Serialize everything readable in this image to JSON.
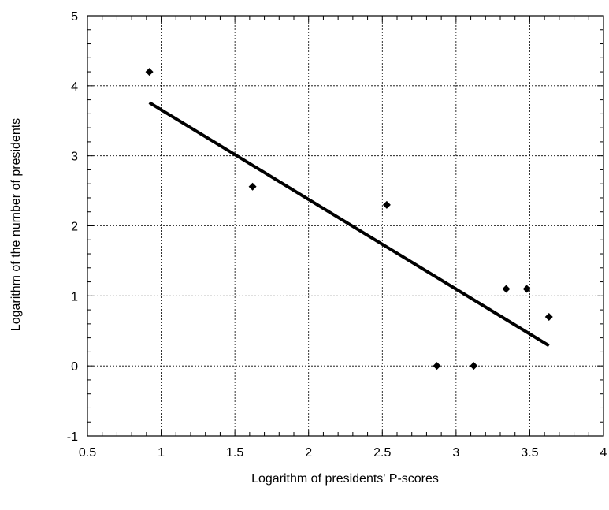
{
  "chart_data": {
    "type": "scatter",
    "xlabel": "Logarithm of presidents' P-scores",
    "ylabel": "Logarithm of the number of presidents",
    "xlim": [
      0.5,
      4
    ],
    "ylim": [
      -1,
      5
    ],
    "xticks": [
      0.5,
      1,
      1.5,
      2,
      2.5,
      3,
      3.5,
      4
    ],
    "xtick_labels": [
      "0.5",
      "1",
      "1.5",
      "2",
      "2.5",
      "3",
      "3.5",
      "4"
    ],
    "yticks": [
      -1,
      0,
      1,
      2,
      3,
      4,
      5
    ],
    "ytick_labels": [
      "-1",
      "0",
      "1",
      "2",
      "3",
      "4",
      "5"
    ],
    "x_minor_step": 0.1,
    "y_minor_step": 0.2,
    "grid": true,
    "grid_style": "dotted",
    "marker": "diamond",
    "points": [
      {
        "x": 0.92,
        "y": 4.2
      },
      {
        "x": 1.62,
        "y": 2.56
      },
      {
        "x": 2.53,
        "y": 2.3
      },
      {
        "x": 2.87,
        "y": 0.0
      },
      {
        "x": 3.12,
        "y": 0.0
      },
      {
        "x": 3.34,
        "y": 1.1
      },
      {
        "x": 3.48,
        "y": 1.1
      },
      {
        "x": 3.63,
        "y": 0.7
      }
    ],
    "trendline": {
      "type": "linear",
      "x": [
        0.92,
        3.63
      ],
      "y": [
        3.76,
        0.29
      ]
    },
    "colors": {
      "axis": "#000000",
      "grid": "#000000",
      "marker": "#000000",
      "trendline": "#000000"
    }
  }
}
